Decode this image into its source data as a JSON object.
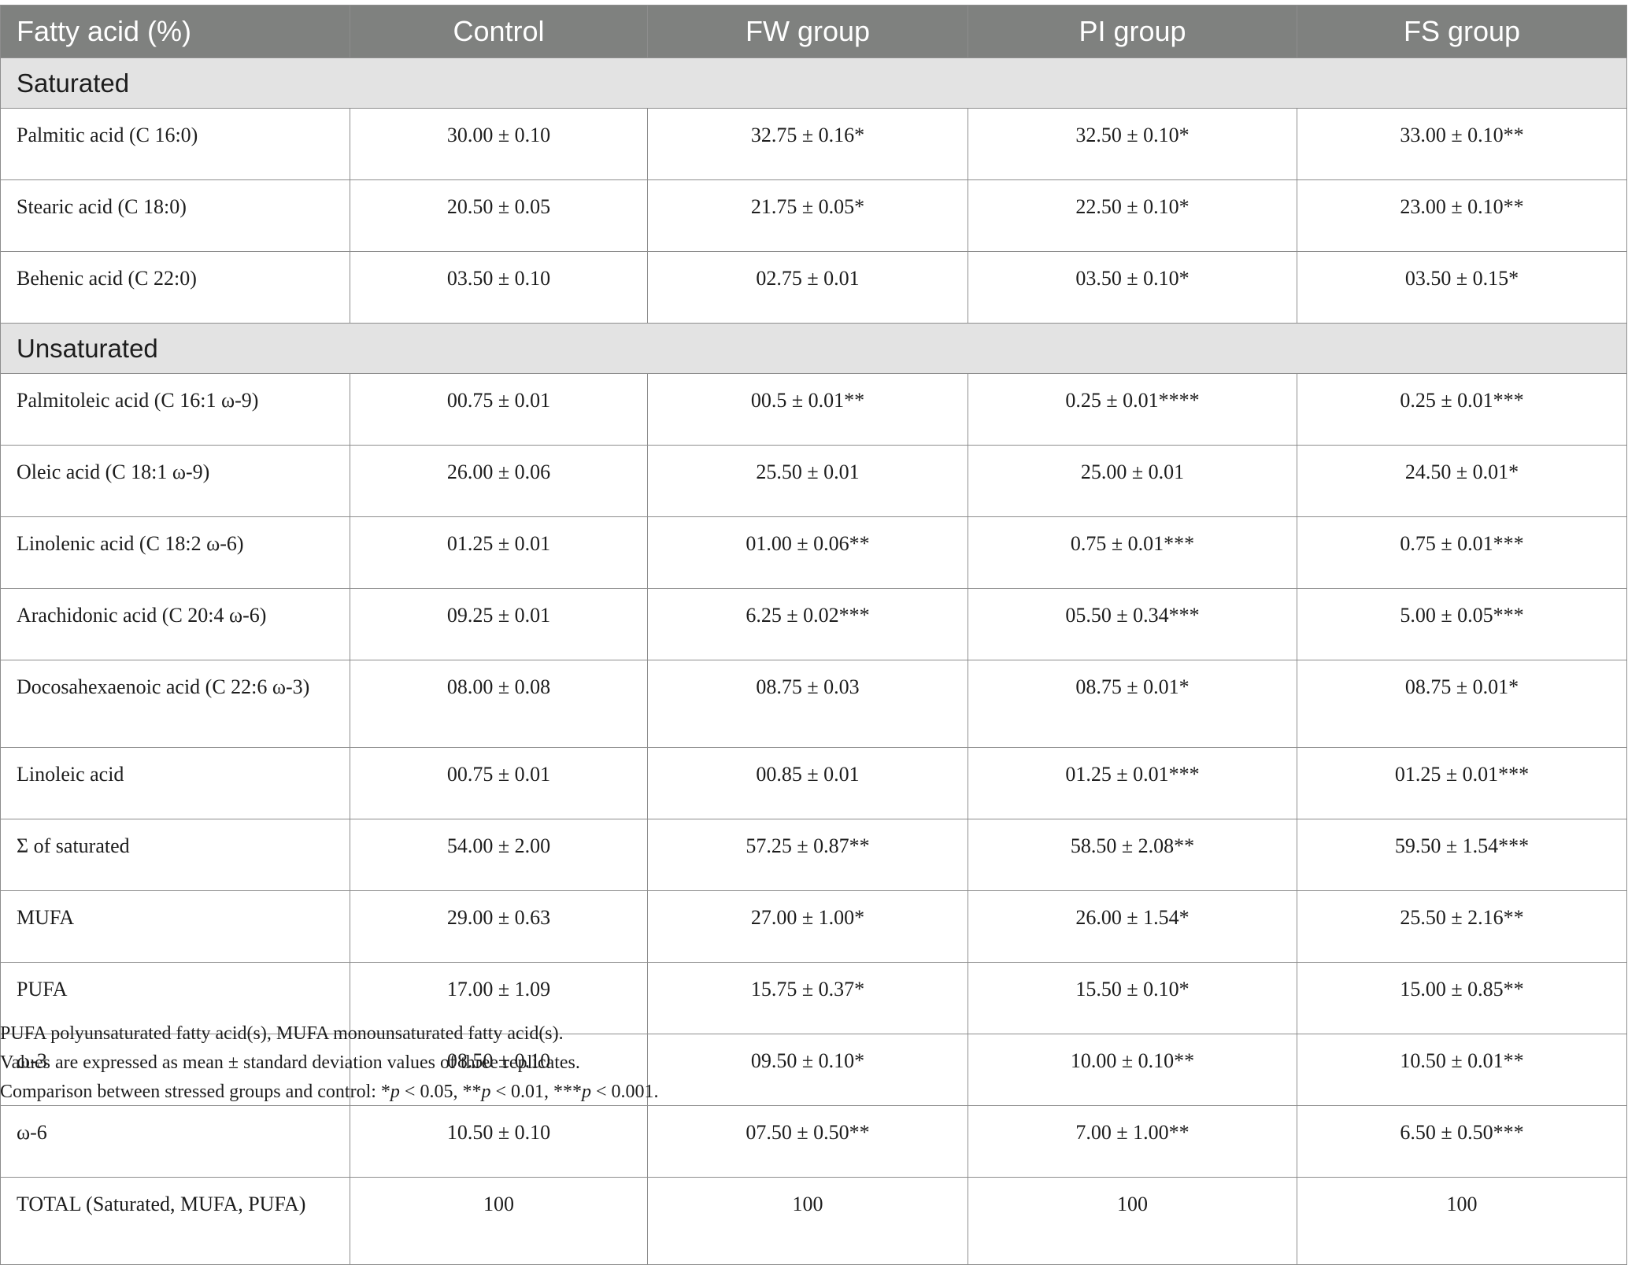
{
  "table": {
    "headers": [
      "Fatty acid (%)",
      "Control",
      "FW group",
      "PI group",
      "FS group"
    ],
    "sections": [
      {
        "title": "Saturated",
        "rows": [
          {
            "label": "Palmitic acid (C 16:0)",
            "values": [
              "30.00 ± 0.10",
              "32.75 ± 0.16*",
              "32.50 ± 0.10*",
              "33.00 ± 0.10**"
            ]
          },
          {
            "label": "Stearic acid (C 18:0)",
            "values": [
              "20.50 ± 0.05",
              "21.75 ± 0.05*",
              "22.50 ± 0.10*",
              "23.00 ± 0.10**"
            ]
          },
          {
            "label": "Behenic acid (C 22:0)",
            "values": [
              "03.50 ± 0.10",
              "02.75 ± 0.01",
              "03.50 ± 0.10*",
              "03.50 ± 0.15*"
            ]
          }
        ]
      },
      {
        "title": "Unsaturated",
        "rows": [
          {
            "label": "Palmitoleic acid (C 16:1 ω-9)",
            "values": [
              "00.75 ± 0.01",
              "00.5 ± 0.01**",
              "0.25 ± 0.01****",
              "0.25 ± 0.01***"
            ]
          },
          {
            "label": "Oleic acid (C 18:1 ω-9)",
            "values": [
              "26.00 ± 0.06",
              "25.50 ± 0.01",
              "25.00 ± 0.01",
              "24.50 ± 0.01*"
            ]
          },
          {
            "label": "Linolenic acid (C 18:2 ω-6)",
            "values": [
              "01.25 ± 0.01",
              "01.00 ± 0.06**",
              "0.75 ± 0.01***",
              "0.75 ± 0.01***"
            ]
          },
          {
            "label": "Arachidonic acid (C 20:4 ω-6)",
            "values": [
              "09.25 ± 0.01",
              "6.25 ± 0.02***",
              "05.50 ± 0.34***",
              "5.00 ± 0.05***"
            ]
          },
          {
            "label": "Docosahexaenoic acid (C 22:6 ω-3)",
            "values": [
              "08.00 ± 0.08",
              "08.75 ± 0.03",
              "08.75 ± 0.01*",
              "08.75 ± 0.01*"
            ],
            "tall": true
          },
          {
            "label": "Linoleic acid",
            "values": [
              "00.75 ± 0.01",
              "00.85 ± 0.01",
              "01.25 ± 0.01***",
              "01.25 ± 0.01***"
            ]
          },
          {
            "label": "Σ of saturated",
            "values": [
              "54.00 ± 2.00",
              "57.25 ± 0.87**",
              "58.50 ± 2.08**",
              "59.50 ± 1.54***"
            ]
          },
          {
            "label": "MUFA",
            "values": [
              "29.00 ± 0.63",
              "27.00 ± 1.00*",
              "26.00 ± 1.54*",
              "25.50 ± 2.16**"
            ]
          },
          {
            "label": "PUFA",
            "values": [
              "17.00 ± 1.09",
              "15.75 ± 0.37*",
              "15.50 ± 0.10*",
              "15.00 ± 0.85**"
            ]
          },
          {
            "label": "ω-3",
            "values": [
              "08.50 ± 0.10",
              "09.50 ± 0.10*",
              "10.00 ± 0.10**",
              "10.50 ± 0.01**"
            ]
          },
          {
            "label": "ω-6",
            "values": [
              "10.50 ± 0.10",
              "07.50 ± 0.50**",
              "7.00 ± 1.00**",
              "6.50 ± 0.50***"
            ]
          },
          {
            "label": "TOTAL (Saturated, MUFA, PUFA)",
            "values": [
              "100",
              "100",
              "100",
              "100"
            ],
            "tall": true
          }
        ]
      }
    ]
  },
  "notes": {
    "abbrev": "PUFA polyunsaturated fatty acid(s), MUFA monounsaturated fatty acid(s).",
    "values": "Values are expressed as mean ± standard deviation values of three replicates.",
    "comparison_prefix": "Comparison between stressed groups and control: ",
    "sig": [
      {
        "stars": "*",
        "p": "p",
        "rest": " < 0.05"
      },
      {
        "stars": "**",
        "p": "p",
        "rest": " < 0.01"
      },
      {
        "stars": "***",
        "p": "p",
        "rest": " < 0.001."
      }
    ]
  }
}
